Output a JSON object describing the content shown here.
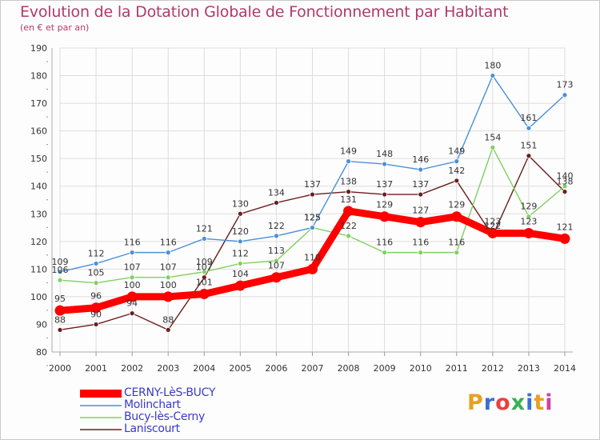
{
  "title": "Evolution de la Dotation Globale de Fonctionnement par Habitant",
  "subtitle": "(en € et par an)",
  "chart_data": {
    "type": "line",
    "x": [
      2000,
      2001,
      2002,
      2003,
      2004,
      2005,
      2006,
      2007,
      2008,
      2009,
      2010,
      2011,
      2012,
      2013,
      2014
    ],
    "ylim": [
      80,
      190
    ],
    "yticks": [
      80,
      90,
      100,
      110,
      120,
      130,
      140,
      150,
      160,
      170,
      180,
      190
    ],
    "grid": true,
    "series": [
      {
        "name": "CERNY-LèS-BUCY",
        "color": "#ff0000",
        "values": [
          95,
          96,
          100,
          100,
          101,
          104,
          107,
          110,
          131,
          129,
          127,
          129,
          123,
          123,
          121
        ]
      },
      {
        "name": "Molinchart",
        "color": "#4a90d9",
        "values": [
          109,
          112,
          116,
          116,
          121,
          120,
          122,
          125,
          149,
          148,
          146,
          149,
          180,
          161,
          173
        ]
      },
      {
        "name": "Bucy-lès-Cerny",
        "color": "#80d060",
        "values": [
          106,
          105,
          107,
          107,
          109,
          112,
          113,
          125,
          122,
          116,
          116,
          116,
          154,
          129,
          140
        ]
      },
      {
        "name": "Laniscourt",
        "color": "#6b1e1e",
        "values": [
          88,
          90,
          94,
          88,
          107,
          130,
          134,
          137,
          138,
          137,
          137,
          142,
          122,
          151,
          138
        ]
      }
    ],
    "legend_position": "bottom-left"
  },
  "legend": [
    {
      "label": "CERNY-LèS-BUCY"
    },
    {
      "label": "Molinchart"
    },
    {
      "label": "Bucy-lès-Cerny"
    },
    {
      "label": "Laniscourt"
    }
  ],
  "logo": {
    "text": "Proxiti",
    "colors": [
      "#e8a020",
      "#3a6fd0",
      "#e84040",
      "#3ab050",
      "#3a6fd0",
      "#e8a020",
      "#d040a0"
    ]
  }
}
